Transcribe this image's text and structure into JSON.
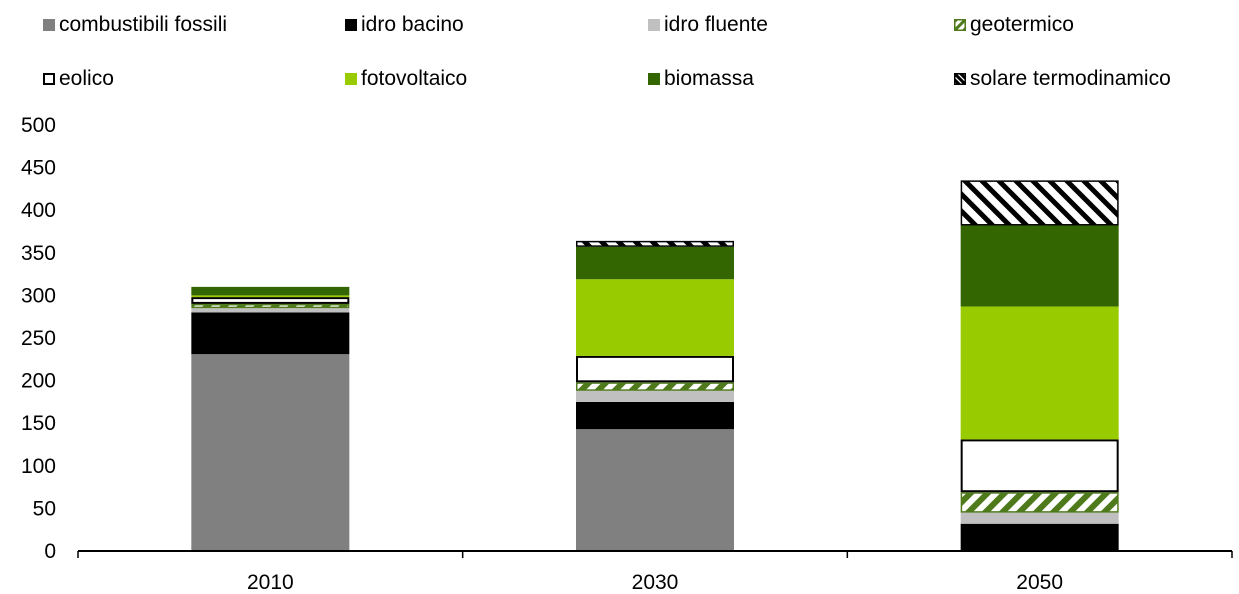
{
  "colors": {
    "combustibili_fossili": "#808080",
    "idro_bacino": "#000000",
    "idro_fluente": "#c0c0c0",
    "geotermico": "#4e7a1c",
    "eolico": "#ffffff",
    "fotovoltaico": "#99cc00",
    "biomassa": "#336600",
    "solare_termodinamico": "#000000"
  },
  "chart_data": {
    "type": "bar",
    "stacked": true,
    "categories": [
      "2010",
      "2030",
      "2050"
    ],
    "ylim": [
      0,
      500
    ],
    "yticks": [
      "0",
      "50",
      "100",
      "150",
      "200",
      "250",
      "300",
      "350",
      "400",
      "450",
      "500"
    ],
    "grid": false,
    "legend_position": "top",
    "series": [
      {
        "name": "combustibili fossili",
        "key": "combustibili_fossili",
        "pattern": "solid",
        "values": [
          231,
          143,
          0
        ]
      },
      {
        "name": "idro bacino",
        "key": "idro_bacino",
        "pattern": "solid",
        "values": [
          49,
          32,
          32
        ]
      },
      {
        "name": "idro fluente",
        "key": "idro_fluente",
        "pattern": "solid",
        "values": [
          5,
          13,
          13
        ]
      },
      {
        "name": "geotermico",
        "key": "geotermico",
        "pattern": "hatch-green",
        "values": [
          5,
          10,
          24
        ]
      },
      {
        "name": "eolico",
        "key": "eolico",
        "pattern": "outline",
        "values": [
          8,
          31,
          62
        ]
      },
      {
        "name": "fotovoltaico",
        "key": "fotovoltaico",
        "pattern": "solid",
        "values": [
          2,
          90,
          156
        ]
      },
      {
        "name": "biomassa",
        "key": "biomassa",
        "pattern": "solid",
        "values": [
          10,
          38,
          95
        ]
      },
      {
        "name": "solare termodinamico",
        "key": "solare_termodinamico",
        "pattern": "hatch-black",
        "values": [
          0,
          7,
          53
        ]
      }
    ]
  }
}
